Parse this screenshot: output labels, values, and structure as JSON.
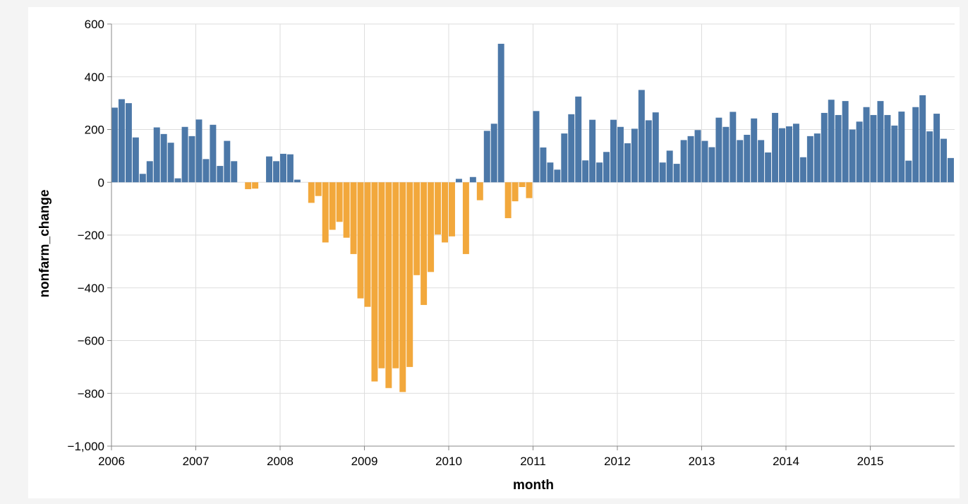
{
  "chart_data": {
    "type": "bar",
    "xlabel": "month",
    "ylabel": "nonfarm_change",
    "ylim": [
      -1000,
      600
    ],
    "yticks": [
      600,
      400,
      200,
      0,
      -200,
      -400,
      -600,
      -800,
      -1000
    ],
    "ytick_labels": [
      "600",
      "400",
      "200",
      "0",
      "−200",
      "−400",
      "−600",
      "−800",
      "−1,000"
    ],
    "xlim": [
      "2006-01",
      "2015-12"
    ],
    "xtick_labels": [
      "2006",
      "2007",
      "2008",
      "2009",
      "2010",
      "2011",
      "2012",
      "2013",
      "2014",
      "2015"
    ],
    "grid": true,
    "colors": {
      "positive": "#4c78a8",
      "negative": "#f2a83c",
      "grid": "#dddddd",
      "axis": "#888888"
    },
    "x": [
      "2006-01",
      "2006-02",
      "2006-03",
      "2006-04",
      "2006-05",
      "2006-06",
      "2006-07",
      "2006-08",
      "2006-09",
      "2006-10",
      "2006-11",
      "2006-12",
      "2007-01",
      "2007-02",
      "2007-03",
      "2007-04",
      "2007-05",
      "2007-06",
      "2007-07",
      "2007-08",
      "2007-09",
      "2007-10",
      "2007-11",
      "2007-12",
      "2008-01",
      "2008-02",
      "2008-03",
      "2008-04",
      "2008-05",
      "2008-06",
      "2008-07",
      "2008-08",
      "2008-09",
      "2008-10",
      "2008-11",
      "2008-12",
      "2009-01",
      "2009-02",
      "2009-03",
      "2009-04",
      "2009-05",
      "2009-06",
      "2009-07",
      "2009-08",
      "2009-09",
      "2009-10",
      "2009-11",
      "2009-12",
      "2010-01",
      "2010-02",
      "2010-03",
      "2010-04",
      "2010-05",
      "2010-06",
      "2010-07",
      "2010-08",
      "2010-09",
      "2010-10",
      "2010-11",
      "2010-12",
      "2011-01",
      "2011-02",
      "2011-03",
      "2011-04",
      "2011-05",
      "2011-06",
      "2011-07",
      "2011-08",
      "2011-09",
      "2011-10",
      "2011-11",
      "2011-12",
      "2012-01",
      "2012-02",
      "2012-03",
      "2012-04",
      "2012-05",
      "2012-06",
      "2012-07",
      "2012-08",
      "2012-09",
      "2012-10",
      "2012-11",
      "2012-12",
      "2013-01",
      "2013-02",
      "2013-03",
      "2013-04",
      "2013-05",
      "2013-06",
      "2013-07",
      "2013-08",
      "2013-09",
      "2013-10",
      "2013-11",
      "2013-12",
      "2014-01",
      "2014-02",
      "2014-03",
      "2014-04",
      "2014-05",
      "2014-06",
      "2014-07",
      "2014-08",
      "2014-09",
      "2014-10",
      "2014-11",
      "2014-12",
      "2015-01",
      "2015-02",
      "2015-03",
      "2015-04",
      "2015-05",
      "2015-06",
      "2015-07",
      "2015-08",
      "2015-09",
      "2015-10",
      "2015-11",
      "2015-12"
    ],
    "values": [
      283,
      315,
      300,
      170,
      32,
      80,
      208,
      183,
      150,
      15,
      210,
      175,
      238,
      88,
      218,
      62,
      157,
      80,
      0,
      -26,
      -24,
      0,
      98,
      80,
      108,
      106,
      10,
      0,
      -78,
      -52,
      -228,
      -180,
      -150,
      -210,
      -272,
      -440,
      -472,
      -755,
      -705,
      -780,
      -705,
      -795,
      -700,
      -352,
      -465,
      -340,
      -198,
      -228,
      -205,
      13,
      -272,
      20,
      -68,
      195,
      222,
      525,
      -136,
      -72,
      -18,
      -60,
      270,
      132,
      75,
      48,
      185,
      258,
      325,
      83,
      237,
      75,
      115,
      237,
      210,
      148,
      203,
      350,
      235,
      265,
      75,
      120,
      70,
      160,
      175,
      198,
      157,
      133,
      245,
      210,
      267,
      160,
      180,
      242,
      160,
      113,
      263,
      205,
      212,
      222,
      95,
      175,
      185,
      263,
      313,
      255,
      308,
      200,
      230,
      285,
      255,
      308,
      255,
      215,
      268,
      82,
      285,
      330,
      193,
      260,
      165,
      92
    ]
  }
}
